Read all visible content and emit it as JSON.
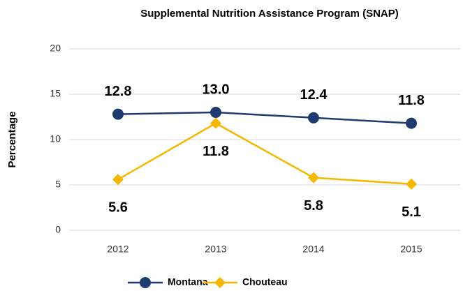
{
  "chart_data": {
    "type": "line",
    "title": "Supplemental Nutrition Assistance Program (SNAP)",
    "y_label": "Percentage",
    "categories": [
      "2012",
      "2013",
      "2014",
      "2015"
    ],
    "series": [
      {
        "name": "Montana",
        "color": "#1f3a6e",
        "marker": "circle",
        "values": [
          12.8,
          13.0,
          12.4,
          11.8
        ],
        "value_labels": [
          "12.8",
          "13.0",
          "12.4",
          "11.8"
        ]
      },
      {
        "name": "Chouteau",
        "color": "#f5b800",
        "marker": "diamond",
        "values": [
          5.6,
          11.8,
          5.8,
          5.1
        ],
        "value_labels": [
          "5.6",
          "11.8",
          "5.8",
          "5.1"
        ]
      }
    ],
    "ylim": [
      0,
      20
    ],
    "yticks": [
      0,
      5,
      10,
      15,
      20
    ],
    "grid": true,
    "legend": "bottom"
  }
}
